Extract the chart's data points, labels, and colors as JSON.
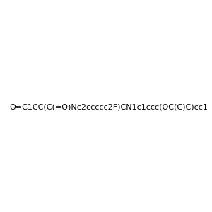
{
  "smiles": "O=C1CC(C(=O)Nc2ccccc2F)CN1c1ccc(OC(C)C)cc1",
  "title": "",
  "background_color": "#e8e8e8",
  "figsize": [
    3.0,
    3.0
  ],
  "dpi": 100
}
